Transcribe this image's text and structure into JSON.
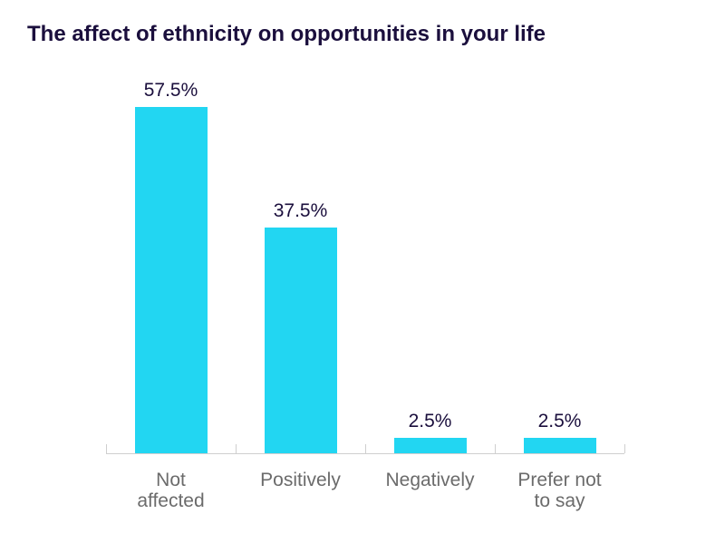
{
  "chart_data": {
    "type": "bar",
    "title": "The affect of ethnicity on opportunities in your life",
    "categories": [
      "Not affected",
      "Positively",
      "Negatively",
      "Prefer not to say"
    ],
    "values": [
      57.5,
      37.5,
      2.5,
      2.5
    ],
    "value_labels": [
      "57.5%",
      "37.5%",
      "2.5%",
      "2.5%"
    ],
    "color": "#22d6f2"
  }
}
